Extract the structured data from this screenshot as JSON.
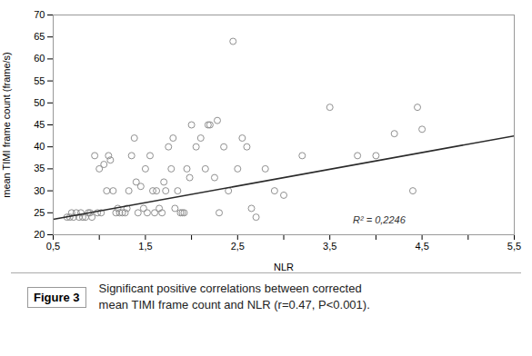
{
  "chart_data": {
    "type": "scatter",
    "x": [
      0.65,
      0.68,
      0.7,
      0.72,
      0.75,
      0.78,
      0.8,
      0.82,
      0.85,
      0.88,
      0.9,
      0.92,
      0.95,
      0.98,
      1.0,
      1.02,
      1.05,
      1.08,
      1.1,
      1.12,
      1.15,
      1.18,
      1.2,
      1.22,
      1.25,
      1.28,
      1.3,
      1.32,
      1.35,
      1.38,
      1.4,
      1.42,
      1.45,
      1.48,
      1.5,
      1.52,
      1.55,
      1.58,
      1.6,
      1.62,
      1.65,
      1.68,
      1.7,
      1.72,
      1.75,
      1.78,
      1.8,
      1.82,
      1.85,
      1.88,
      1.9,
      1.92,
      1.95,
      1.98,
      2.0,
      2.05,
      2.1,
      2.15,
      2.18,
      2.2,
      2.25,
      2.28,
      2.3,
      2.35,
      2.4,
      2.45,
      2.5,
      2.55,
      2.6,
      2.65,
      2.7,
      2.8,
      2.9,
      3.0,
      3.2,
      3.5,
      3.8,
      4.0,
      4.2,
      4.4,
      4.45,
      4.5
    ],
    "values": [
      24,
      24,
      25,
      24,
      25,
      24,
      25,
      24,
      24,
      25,
      25,
      24,
      38,
      25,
      35,
      25,
      36,
      30,
      38,
      37,
      30,
      25,
      26,
      25,
      25,
      25,
      26,
      30,
      38,
      42,
      32,
      25,
      31,
      26,
      35,
      25,
      38,
      30,
      25,
      30,
      26,
      25,
      32,
      30,
      40,
      35,
      42,
      26,
      30,
      25,
      25,
      25,
      35,
      33,
      45,
      40,
      42,
      35,
      45,
      45,
      33,
      46,
      25,
      40,
      30,
      64,
      35,
      42,
      40,
      26,
      24,
      35,
      30,
      29,
      38,
      49,
      38,
      38,
      43,
      30,
      49,
      44
    ],
    "color": "#909090",
    "marker": "open circle",
    "line": {
      "x": [
        0.5,
        5.5
      ],
      "y": [
        23.5,
        42.5
      ],
      "color": "#2a2a2a"
    },
    "annotations": [
      {
        "text": "R² = 0,2246",
        "x": 3.75,
        "y": 22.5
      }
    ],
    "xlabel": "NLR",
    "ylabel": "mean TIMI frame count (frame/s)",
    "xlim": [
      0.5,
      5.5
    ],
    "ylim": [
      20,
      70
    ],
    "xticks": [
      {
        "value": 0.5,
        "label": "0,5"
      },
      {
        "value": 1.0,
        "label": null
      },
      {
        "value": 1.5,
        "label": "1,5"
      },
      {
        "value": 2.0,
        "label": null
      },
      {
        "value": 2.5,
        "label": "2,5"
      },
      {
        "value": 3.0,
        "label": null
      },
      {
        "value": 3.5,
        "label": "3,5"
      },
      {
        "value": 4.0,
        "label": null
      },
      {
        "value": 4.5,
        "label": "4,5"
      },
      {
        "value": 5.0,
        "label": null
      },
      {
        "value": 5.5,
        "label": "5,5"
      }
    ],
    "yticks": [
      20,
      25,
      30,
      35,
      40,
      45,
      50,
      55,
      60,
      65,
      70
    ],
    "grid": false,
    "caption_label": "Figure 3",
    "caption": [
      "Significant positive correlations between corrected",
      "mean TIMI frame count and NLR (r=0.47, P<0.001)."
    ]
  }
}
